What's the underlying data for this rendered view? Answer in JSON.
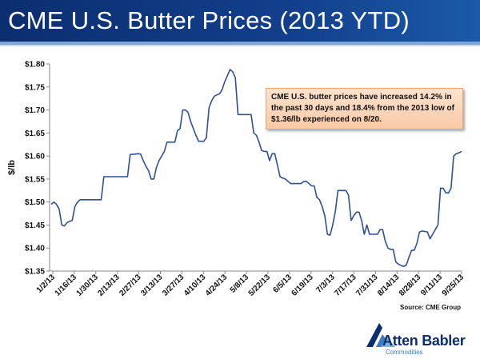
{
  "header": {
    "title": "CME U.S. Butter Prices (2013 YTD)"
  },
  "annotation": {
    "text": "CME U.S. butter prices have increased 14.2% in the past 30 days and 18.4% from the 2013 low of $1.36/lb experienced on 8/20."
  },
  "source": "Source: CME Group",
  "logo": {
    "name": "Atten Babler",
    "tagline": "Commodities"
  },
  "colors": {
    "banner": "#0b2e6f",
    "line": "#2f4f9a",
    "callout": "#f9c9a6"
  },
  "chart_data": {
    "type": "line",
    "title": "",
    "xlabel": "",
    "ylabel": "$/lb",
    "ylim": [
      1.35,
      1.8
    ],
    "y_ticks": [
      "$1.35",
      "$1.40",
      "$1.45",
      "$1.50",
      "$1.55",
      "$1.60",
      "$1.65",
      "$1.70",
      "$1.75",
      "$1.80"
    ],
    "x_ticks": [
      "1/2/13",
      "1/16/13",
      "1/30/13",
      "2/13/13",
      "2/27/13",
      "3/13/13",
      "3/27/13",
      "4/10/13",
      "4/24/13",
      "5/8/13",
      "5/22/13",
      "6/5/13",
      "6/19/13",
      "7/3/13",
      "7/17/13",
      "7/31/13",
      "8/14/13",
      "8/28/13",
      "9/11/13",
      "9/25/13"
    ],
    "grid": false,
    "series": [
      {
        "values": [
          1.495,
          1.5,
          1.495,
          1.485,
          1.45,
          1.448,
          1.455,
          1.458,
          1.46,
          1.49,
          1.5,
          1.505,
          1.505,
          1.505,
          1.505,
          1.505,
          1.505,
          1.505,
          1.505,
          1.505,
          1.555,
          1.555,
          1.555,
          1.555,
          1.555,
          1.555,
          1.555,
          1.555,
          1.555,
          1.555,
          1.603,
          1.604,
          1.604,
          1.605,
          1.604,
          1.59,
          1.578,
          1.568,
          1.55,
          1.55,
          1.575,
          1.59,
          1.6,
          1.61,
          1.63,
          1.63,
          1.63,
          1.63,
          1.655,
          1.66,
          1.7,
          1.7,
          1.695,
          1.675,
          1.66,
          1.645,
          1.632,
          1.632,
          1.632,
          1.64,
          1.705,
          1.72,
          1.73,
          1.733,
          1.735,
          1.745,
          1.762,
          1.775,
          1.788,
          1.783,
          1.77,
          1.69,
          1.69,
          1.69,
          1.69,
          1.69,
          1.69,
          1.65,
          1.645,
          1.63,
          1.612,
          1.61,
          1.61,
          1.59,
          1.605,
          1.605,
          1.58,
          1.555,
          1.552,
          1.55,
          1.545,
          1.54,
          1.54,
          1.54,
          1.54,
          1.54,
          1.545,
          1.545,
          1.54,
          1.535,
          1.535,
          1.51,
          1.505,
          1.49,
          1.47,
          1.43,
          1.428,
          1.45,
          1.48,
          1.525,
          1.525,
          1.525,
          1.525,
          1.515,
          1.46,
          1.47,
          1.478,
          1.478,
          1.46,
          1.43,
          1.45,
          1.43,
          1.43,
          1.43,
          1.43,
          1.44,
          1.44,
          1.415,
          1.4,
          1.397,
          1.397,
          1.37,
          1.365,
          1.362,
          1.36,
          1.363,
          1.38,
          1.395,
          1.395,
          1.41,
          1.435,
          1.437,
          1.436,
          1.435,
          1.42,
          1.43,
          1.44,
          1.45,
          1.53,
          1.53,
          1.52,
          1.52,
          1.53,
          1.6,
          1.605,
          1.607,
          1.61
        ]
      }
    ]
  }
}
